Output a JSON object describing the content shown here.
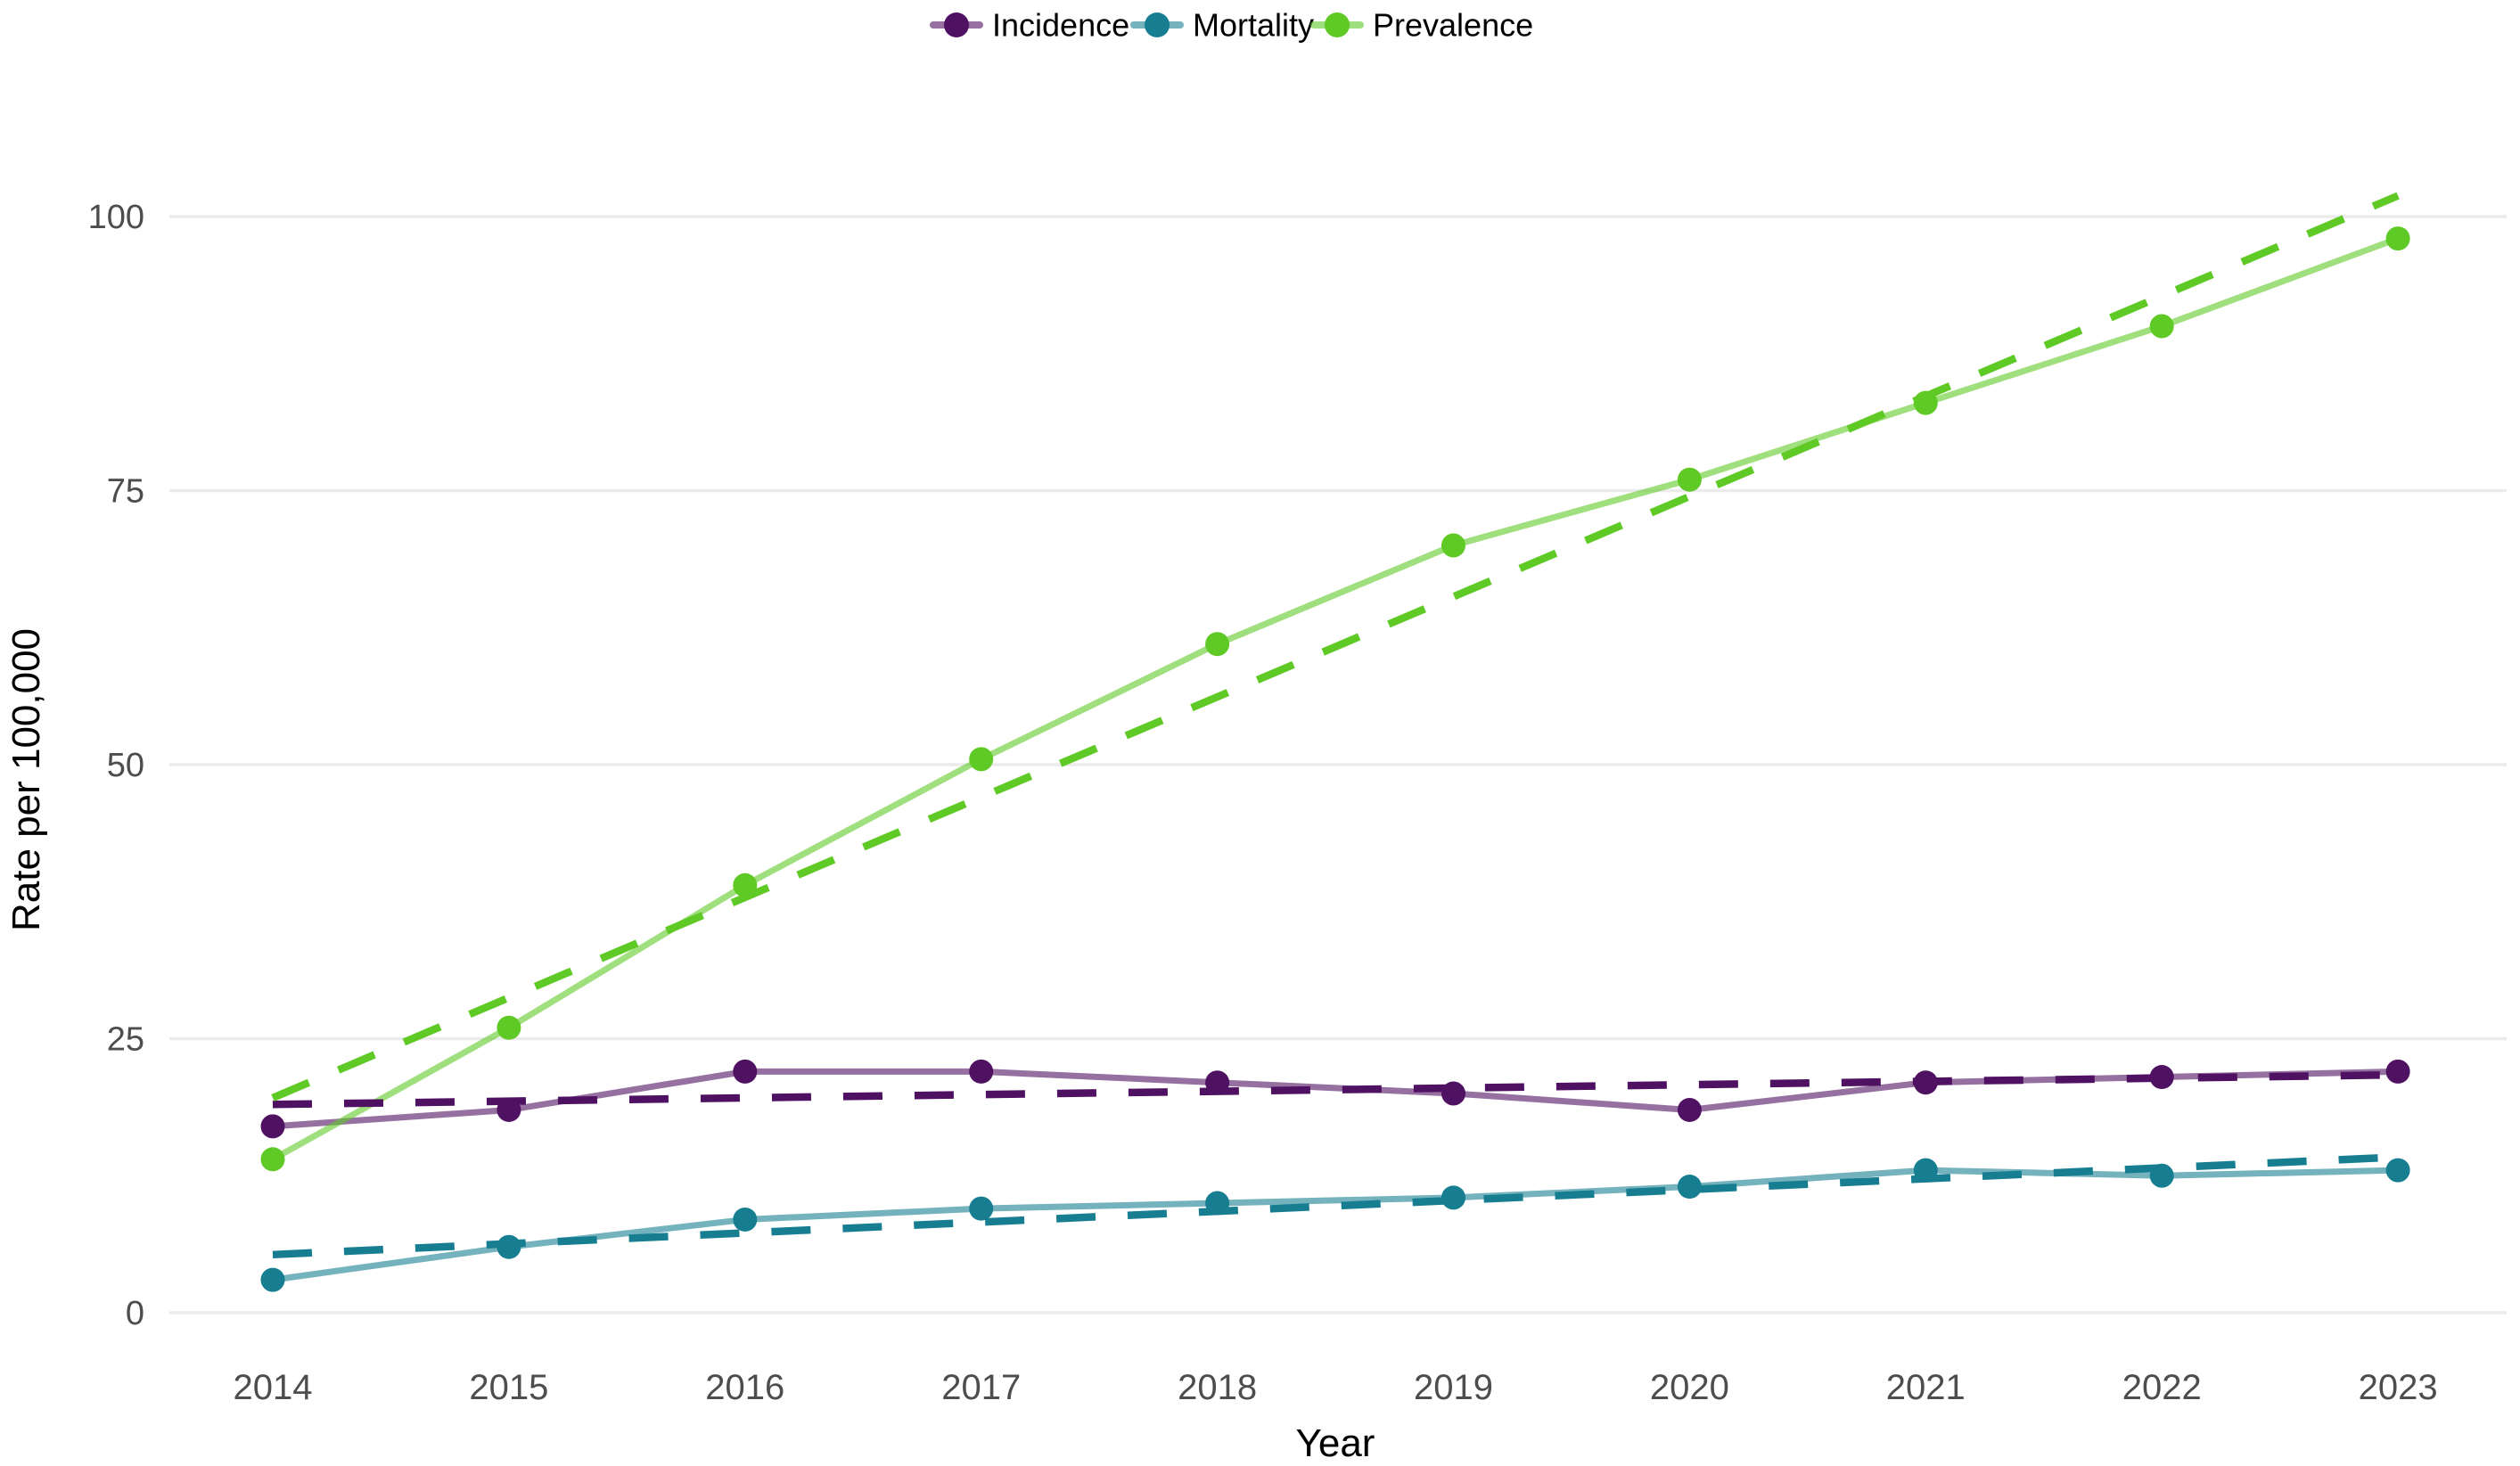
{
  "chart_data": {
    "type": "line",
    "title": "",
    "xlabel": "Year",
    "ylabel": "Rate per 100,000",
    "x": [
      2014,
      2015,
      2016,
      2017,
      2018,
      2019,
      2020,
      2021,
      2022,
      2023
    ],
    "xtick_labels": [
      "2014",
      "2015",
      "2016",
      "2017",
      "2018",
      "2019",
      "2020",
      "2021",
      "2022",
      "2023"
    ],
    "yticks": [
      0,
      25,
      50,
      75,
      100
    ],
    "ytick_labels": [
      "0",
      "25",
      "50",
      "75",
      "100"
    ],
    "ylim": [
      0,
      103
    ],
    "grid": "horizontal major gridlines only",
    "legend_position": "top-center",
    "background_color": "#ffffff",
    "grid_color": "#ebebeb",
    "tick_label_color": "#4d4d4d",
    "axis_title_color": "#000000",
    "series": [
      {
        "name": "Incidence",
        "color": "#4F1161",
        "marker": "filled-circle",
        "line_style": "solid translucent line with opaque points",
        "values": [
          17,
          18.5,
          22,
          22,
          21,
          20,
          18.5,
          21,
          21.5,
          22
        ],
        "trend_style": "dashed straight linear fit",
        "trend": {
          "start": 19.0,
          "end": 21.7
        }
      },
      {
        "name": "Mortality",
        "color": "#177E91",
        "marker": "filled-circle",
        "line_style": "solid translucent line with opaque points",
        "values": [
          3,
          6,
          8.5,
          9.5,
          10,
          10.5,
          11.5,
          13,
          12.5,
          13
        ],
        "trend_style": "dashed straight linear fit",
        "trend": {
          "start": 5.3,
          "end": 14.2
        }
      },
      {
        "name": "Prevalence",
        "color": "#5FC926",
        "marker": "filled-circle",
        "line_style": "solid translucent line with opaque points",
        "values": [
          14,
          26,
          39,
          50.5,
          61,
          70,
          76,
          83,
          90,
          98
        ],
        "trend_style": "dashed straight linear fit",
        "trend": {
          "start": 19.6,
          "end": 101.9
        }
      }
    ]
  }
}
